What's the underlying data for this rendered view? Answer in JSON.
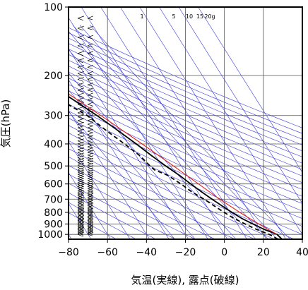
{
  "chart_data": {
    "type": "skew-t",
    "xlabel": "気温(実線), 露点(破線)",
    "ylabel": "気圧(hPa)",
    "x_ticks": [
      -80,
      -60,
      -40,
      -20,
      0,
      20,
      40
    ],
    "y_ticks": [
      100,
      200,
      300,
      400,
      500,
      600,
      700,
      800,
      900,
      1000
    ],
    "xlim": [
      -80,
      40
    ],
    "ylim": [
      1050,
      100
    ],
    "y_scale": "log",
    "mixing_ratio_labels": [
      "1",
      "5",
      "10",
      "15",
      "20g"
    ],
    "colors": {
      "temperature": "#000000",
      "dewpoint": "#000000",
      "parcel": "#e02020",
      "background_lines": "#3a3ad8",
      "grid": "#555555",
      "wind_barbs": "#000000"
    },
    "series": [
      {
        "style": "solid",
        "points": [
          [
            1050,
            28
          ],
          [
            1000,
            27
          ],
          [
            950,
            22
          ],
          [
            900,
            18
          ],
          [
            850,
            14
          ],
          [
            800,
            11
          ],
          [
            750,
            8
          ],
          [
            700,
            5
          ],
          [
            650,
            2
          ],
          [
            600,
            -1
          ],
          [
            550,
            -4
          ],
          [
            500,
            -8
          ],
          [
            450,
            -12
          ],
          [
            400,
            -16
          ],
          [
            350,
            -21
          ],
          [
            300,
            -27
          ],
          [
            250,
            -35
          ],
          [
            200,
            -44
          ],
          [
            175,
            -48
          ],
          [
            150,
            -53
          ],
          [
            130,
            -60
          ],
          [
            120,
            -66
          ],
          [
            110,
            -72
          ],
          [
            105,
            -74
          ],
          [
            102,
            -73
          ]
        ]
      },
      {
        "style": "dashed",
        "points": [
          [
            1050,
            26
          ],
          [
            1000,
            23
          ],
          [
            950,
            18
          ],
          [
            900,
            14
          ],
          [
            850,
            10
          ],
          [
            800,
            7
          ],
          [
            750,
            4
          ],
          [
            700,
            1
          ],
          [
            650,
            -3
          ],
          [
            600,
            -6
          ],
          [
            550,
            -10
          ],
          [
            520,
            -15
          ],
          [
            500,
            -16
          ],
          [
            450,
            -18
          ],
          [
            400,
            -22
          ],
          [
            350,
            -27
          ],
          [
            300,
            -32
          ],
          [
            260,
            -40
          ],
          [
            246,
            -42
          ],
          [
            244,
            -55
          ],
          [
            243,
            -73
          ],
          [
            240,
            -80
          ]
        ]
      },
      {
        "style": "solid",
        "points": [
          [
            1000,
            27
          ],
          [
            950,
            24
          ],
          [
            900,
            21
          ],
          [
            850,
            18
          ],
          [
            800,
            15
          ],
          [
            700,
            9
          ],
          [
            600,
            3
          ],
          [
            500,
            -4
          ],
          [
            400,
            -13
          ],
          [
            300,
            -25
          ],
          [
            250,
            -33
          ],
          [
            200,
            -43
          ]
        ]
      }
    ]
  }
}
